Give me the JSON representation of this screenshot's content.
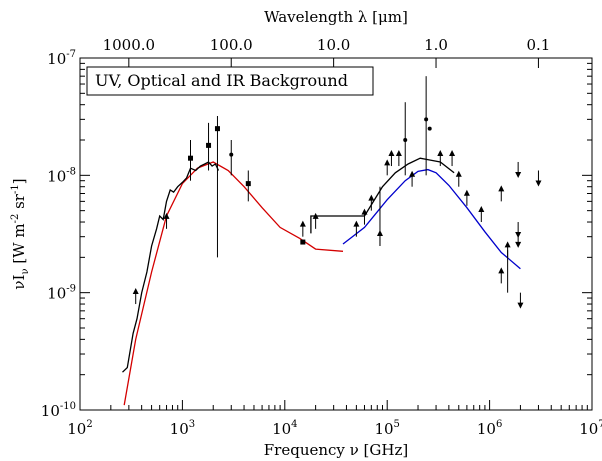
{
  "chart_data": {
    "type": "line",
    "title": "",
    "legend_box_text": "UV, Optical and IR Background",
    "xlabel": "Frequency ν [GHz]",
    "top_xlabel": "Wavelength λ [μm]",
    "ylabel_main": "νI",
    "ylabel_sub": "ν",
    "ylabel_units": "[W m",
    "ylabel_units_exp1": "-2",
    "ylabel_units_mid": " sr",
    "ylabel_units_exp2": "-1",
    "ylabel_units_end": "]",
    "x_scale": "log",
    "y_scale": "log",
    "xlim": [
      100,
      10000000
    ],
    "ylim": [
      1e-10,
      1e-07
    ],
    "x_ticks": [
      {
        "value": 100,
        "base": "10",
        "exp": "2"
      },
      {
        "value": 1000,
        "base": "10",
        "exp": "3"
      },
      {
        "value": 10000,
        "base": "10",
        "exp": "4"
      },
      {
        "value": 100000,
        "base": "10",
        "exp": "5"
      },
      {
        "value": 1000000,
        "base": "10",
        "exp": "6"
      },
      {
        "value": 10000000,
        "base": "10",
        "exp": "7"
      }
    ],
    "y_ticks": [
      {
        "value": 1e-10,
        "base": "10",
        "exp": "-10"
      },
      {
        "value": 1e-09,
        "base": "10",
        "exp": "-9"
      },
      {
        "value": 1e-08,
        "base": "10",
        "exp": "-8"
      },
      {
        "value": 1e-07,
        "base": "10",
        "exp": "-7"
      }
    ],
    "top_ticks": [
      {
        "freq": 299.8,
        "label": "1000.0"
      },
      {
        "freq": 2998,
        "label": "100.0"
      },
      {
        "freq": 29980,
        "label": "10.0"
      },
      {
        "freq": 299800,
        "label": "1.0"
      },
      {
        "freq": 2998000,
        "label": "0.1"
      }
    ],
    "series": [
      {
        "color": "#d40000",
        "x": [
          270,
          350,
          500,
          700,
          1000,
          1400,
          2000,
          2800,
          4000,
          6000,
          9000,
          14000,
          20000,
          37000
        ],
        "y": [
          1.1e-10,
          4e-10,
          1.5e-09,
          4.5e-09,
          8.5e-09,
          1.15e-08,
          1.3e-08,
          1.1e-08,
          8e-09,
          5.3e-09,
          3.6e-09,
          2.9e-09,
          2.35e-09,
          2.25e-09
        ]
      },
      {
        "color": "#000000",
        "x": [
          260,
          290,
          330,
          360,
          400,
          450,
          500,
          560,
          600,
          650,
          700,
          760,
          820,
          900,
          1000,
          1100,
          1200,
          1350,
          1500,
          1650,
          1800,
          1950,
          2100,
          2250
        ],
        "y": [
          2.1e-10,
          2.3e-10,
          4.5e-10,
          6e-10,
          1e-09,
          1.5e-09,
          2.5e-09,
          3.5e-09,
          4.5e-09,
          4.2e-09,
          6e-09,
          7.5e-09,
          7.2e-09,
          8e-09,
          8.7e-09,
          9.5e-09,
          1.15e-08,
          1.1e-08,
          1.2e-08,
          1.25e-08,
          1.3e-08,
          1.2e-08,
          1.25e-08,
          1.1e-08
        ]
      },
      {
        "color": "#0000cc",
        "x": [
          37000,
          60000,
          100000,
          150000,
          200000,
          250000,
          300000,
          400000,
          600000,
          900000,
          1300000,
          2000000
        ],
        "y": [
          2.6e-09,
          3.6e-09,
          6.2e-09,
          9e-09,
          1.08e-08,
          1.12e-08,
          1.05e-08,
          8.2e-09,
          5.3e-09,
          3.3e-09,
          2.2e-09,
          1.6e-09
        ]
      },
      {
        "color": "#000000",
        "x": [
          18000,
          18000,
          60000,
          90000,
          120000,
          160000,
          210000,
          260000,
          330000,
          450000
        ],
        "y": [
          3.2e-09,
          4.5e-09,
          4.5e-09,
          8e-09,
          1.05e-08,
          1.25e-08,
          1.4e-08,
          1.35e-08,
          1.3e-08,
          1.05e-08
        ]
      }
    ],
    "points": [
      {
        "x": 350,
        "y": 8e-10,
        "marker": "arrow-up"
      },
      {
        "x": 700,
        "y": 3.5e-09,
        "marker": "arrow-up"
      },
      {
        "x": 1200,
        "y": 1.4e-08,
        "marker": "square",
        "err": [
          9e-09,
          2e-08
        ]
      },
      {
        "x": 1800,
        "y": 1.8e-08,
        "marker": "square",
        "err": [
          1.1e-08,
          2.8e-08
        ]
      },
      {
        "x": 2200,
        "y": 2.5e-08,
        "marker": "square",
        "err": [
          2e-09,
          3.2e-08
        ]
      },
      {
        "x": 3000,
        "y": 1.5e-08,
        "marker": "dot",
        "err": [
          1e-08,
          2e-08
        ]
      },
      {
        "x": 4400,
        "y": 8.5e-09,
        "marker": "square",
        "err": [
          6e-09,
          1.1e-08
        ]
      },
      {
        "x": 15000,
        "y": 2.7e-09,
        "marker": "square"
      },
      {
        "x": 15000,
        "y": 3e-09,
        "marker": "arrow-up"
      },
      {
        "x": 20000,
        "y": 3.5e-09,
        "marker": "arrow-up"
      },
      {
        "x": 50000,
        "y": 3e-09,
        "marker": "arrow-up"
      },
      {
        "x": 60000,
        "y": 3.8e-09,
        "marker": "arrow-up"
      },
      {
        "x": 70000,
        "y": 5e-09,
        "marker": "arrow-up"
      },
      {
        "x": 85000,
        "y": 2.5e-09,
        "marker": "arrow-up",
        "err": [
          2.5e-09,
          8e-09
        ]
      },
      {
        "x": 100000,
        "y": 1e-08,
        "marker": "arrow-up"
      },
      {
        "x": 110000,
        "y": 1.2e-08,
        "marker": "arrow-up"
      },
      {
        "x": 130000,
        "y": 1.2e-08,
        "marker": "arrow-up"
      },
      {
        "x": 150000,
        "y": 2e-08,
        "marker": "dot",
        "err": [
          1e-08,
          4.2e-08
        ]
      },
      {
        "x": 175000,
        "y": 8e-09,
        "marker": "arrow-up"
      },
      {
        "x": 240000,
        "y": 3e-08,
        "marker": "dot",
        "err": [
          1e-08,
          7e-08
        ]
      },
      {
        "x": 260000,
        "y": 2.5e-08,
        "marker": "dot"
      },
      {
        "x": 330000,
        "y": 1.2e-08,
        "marker": "arrow-up"
      },
      {
        "x": 430000,
        "y": 1.2e-08,
        "marker": "arrow-up"
      },
      {
        "x": 500000,
        "y": 8e-09,
        "marker": "arrow-up"
      },
      {
        "x": 600000,
        "y": 5.5e-09,
        "marker": "arrow-up"
      },
      {
        "x": 830000,
        "y": 4e-09,
        "marker": "arrow-up"
      },
      {
        "x": 1300000,
        "y": 1.2e-09,
        "marker": "arrow-up"
      },
      {
        "x": 1300000,
        "y": 6e-09,
        "marker": "arrow-up"
      },
      {
        "x": 1500000,
        "y": 2e-09,
        "marker": "arrow-up",
        "err": [
          1e-09,
          2.3e-09
        ]
      },
      {
        "x": 1900000,
        "y": 1.3e-08,
        "marker": "arrow-down"
      },
      {
        "x": 1900000,
        "y": 4e-09,
        "marker": "arrow-down"
      },
      {
        "x": 1900000,
        "y": 3.3e-09,
        "marker": "arrow-down"
      },
      {
        "x": 2000000,
        "y": 1e-09,
        "marker": "arrow-down"
      },
      {
        "x": 3000000,
        "y": 1.1e-08,
        "marker": "arrow-down"
      }
    ]
  }
}
